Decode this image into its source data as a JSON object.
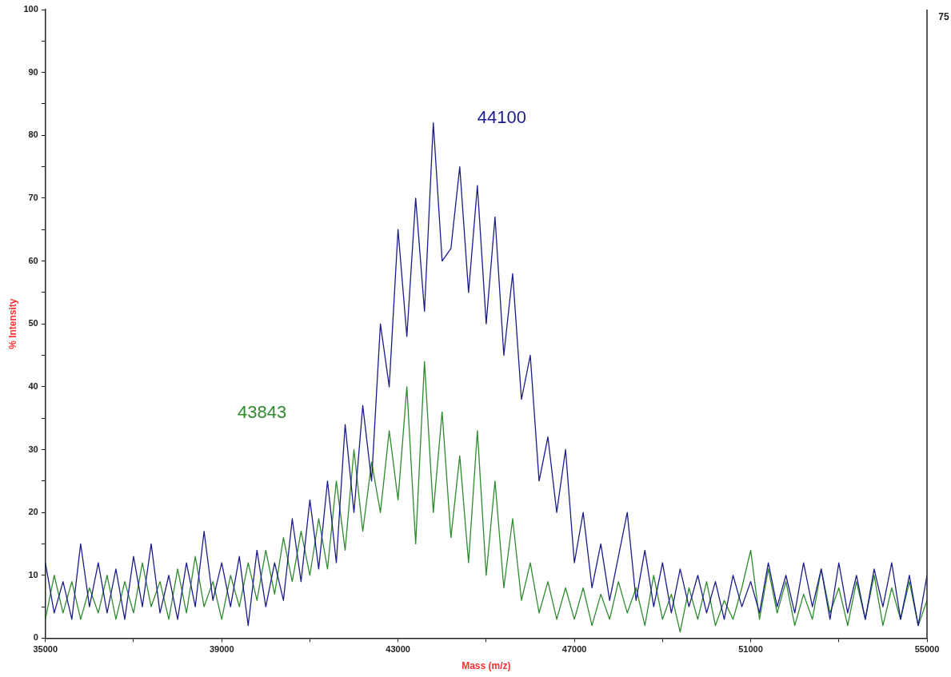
{
  "chart_data": {
    "type": "line",
    "xlabel": "Mass (m/z)",
    "ylabel": "% Intensity",
    "x": [
      35000,
      35200,
      35400,
      35600,
      35800,
      36000,
      36200,
      36400,
      36600,
      36800,
      37000,
      37200,
      37400,
      37600,
      37800,
      38000,
      38200,
      38400,
      38600,
      38800,
      39000,
      39200,
      39400,
      39600,
      39800,
      40000,
      40200,
      40400,
      40600,
      40800,
      41000,
      41200,
      41400,
      41600,
      41800,
      42000,
      42200,
      42400,
      42600,
      42800,
      43000,
      43200,
      43400,
      43600,
      43800,
      44000,
      44200,
      44400,
      44600,
      44800,
      45000,
      45200,
      45400,
      45600,
      45800,
      46000,
      46200,
      46400,
      46600,
      46800,
      47000,
      47200,
      47400,
      47600,
      47800,
      48000,
      48200,
      48400,
      48600,
      48800,
      49000,
      49200,
      49400,
      49600,
      49800,
      50000,
      50200,
      50400,
      50600,
      50800,
      51000,
      51200,
      51400,
      51600,
      51800,
      52000,
      52200,
      52400,
      52600,
      52800,
      53000,
      53200,
      53400,
      53600,
      53800,
      54000,
      54200,
      54400,
      54600,
      54800,
      55000
    ],
    "series": [
      {
        "color": "#1c1c8c",
        "values": [
          12,
          4,
          9,
          3,
          15,
          5,
          12,
          4,
          11,
          3,
          13,
          5,
          15,
          4,
          10,
          3,
          12,
          5,
          17,
          6,
          12,
          5,
          13,
          2,
          14,
          5,
          12,
          6,
          19,
          9,
          22,
          11,
          25,
          12,
          34,
          20,
          37,
          25,
          50,
          40,
          65,
          48,
          70,
          52,
          82,
          60,
          62,
          75,
          55,
          72,
          50,
          67,
          45,
          58,
          38,
          45,
          25,
          32,
          20,
          30,
          12,
          20,
          8,
          15,
          6,
          13,
          20,
          6,
          14,
          5,
          12,
          4,
          11,
          5,
          10,
          4,
          9,
          3,
          10,
          5,
          9,
          4,
          12,
          5,
          10,
          4,
          12,
          5,
          11,
          3,
          12,
          4,
          10,
          3,
          11,
          5,
          12,
          3,
          10,
          2,
          10
        ]
      },
      {
        "color": "#2e8b2e",
        "values": [
          3,
          10,
          4,
          9,
          3,
          8,
          4,
          10,
          3,
          9,
          4,
          12,
          5,
          9,
          3,
          11,
          4,
          13,
          5,
          9,
          3,
          10,
          5,
          12,
          6,
          14,
          7,
          16,
          9,
          17,
          10,
          19,
          11,
          25,
          14,
          30,
          17,
          28,
          20,
          33,
          22,
          40,
          15,
          44,
          20,
          36,
          16,
          29,
          12,
          33,
          10,
          25,
          8,
          19,
          6,
          12,
          4,
          9,
          3,
          8,
          3,
          8,
          2,
          7,
          3,
          9,
          4,
          8,
          2,
          10,
          3,
          7,
          1,
          8,
          3,
          9,
          2,
          6,
          3,
          8,
          14,
          3,
          11,
          4,
          9,
          2,
          7,
          3,
          11,
          4,
          8,
          2,
          9,
          3,
          10,
          2,
          8,
          3,
          9,
          2,
          6
        ]
      }
    ],
    "xlim": [
      35000,
      55000
    ],
    "xticks": [
      35000,
      {
        "value": 37000,
        "label": null
      },
      39000,
      {
        "value": 41000,
        "label": null
      },
      43000,
      {
        "value": 45000,
        "label": null
      },
      47000,
      {
        "value": 49000,
        "label": null
      },
      51000,
      {
        "value": 53000,
        "label": null
      },
      55000
    ],
    "ylim": [
      0,
      100
    ],
    "yticks": [
      0,
      {
        "value": 5,
        "label": null
      },
      10,
      {
        "value": 15,
        "label": null
      },
      20,
      {
        "value": 25,
        "label": null
      },
      30,
      {
        "value": 35,
        "label": null
      },
      40,
      {
        "value": 45,
        "label": null
      },
      50,
      {
        "value": 55,
        "label": null
      },
      60,
      {
        "value": 65,
        "label": null
      },
      70,
      {
        "value": 75,
        "label": null
      },
      80,
      {
        "value": 85,
        "label": null
      },
      90,
      {
        "value": 95,
        "label": null
      },
      100
    ],
    "grid": false,
    "legend": false,
    "marker": "none",
    "line_style": "solid",
    "annotations": [
      "44100",
      "43843",
      "75"
    ]
  }
}
